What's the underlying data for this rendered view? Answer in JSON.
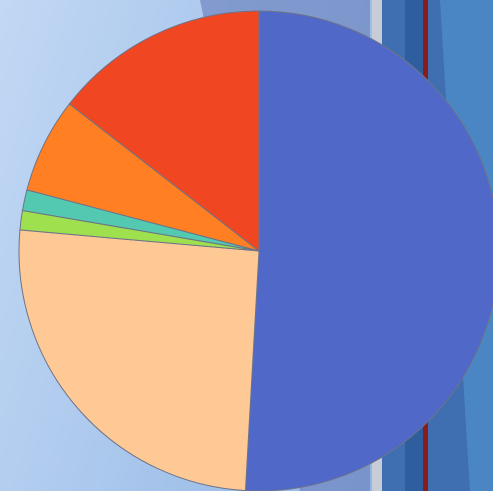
{
  "chart_data": {
    "type": "pie",
    "values": [
      50.9,
      25.5,
      1.3,
      1.4,
      6.4,
      14.5
    ],
    "colors": [
      "#5068c8",
      "#ffc996",
      "#9ee04e",
      "#52c9b0",
      "#ff7f22",
      "#f04622"
    ]
  }
}
